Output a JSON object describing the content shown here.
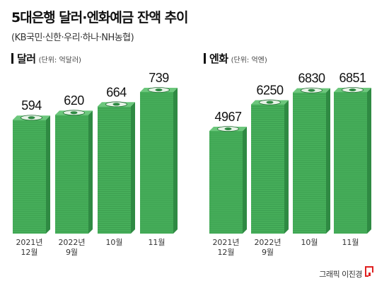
{
  "header": {
    "title": "5대은행 달러·엔화예금 잔액 추이",
    "subtitle": "(KB국민·신한·우리·하나·NH농협)"
  },
  "chart_data": [
    {
      "type": "bar",
      "title": "달러",
      "unit": "(단위: 억달러)",
      "categories": [
        [
          "2021년",
          "12월"
        ],
        [
          "2022년",
          "9월"
        ],
        [
          "10월"
        ],
        [
          "11월"
        ]
      ],
      "values": [
        594,
        620,
        664,
        739
      ],
      "value_labels": [
        "594",
        "620",
        "664",
        "739"
      ],
      "ylim": [
        0,
        739
      ],
      "grid": false,
      "style": "stacked-banknotes",
      "color": "#3a9a4e"
    },
    {
      "type": "bar",
      "title": "엔화",
      "unit": "(단위: 억엔)",
      "categories": [
        [
          "2021년",
          "12월"
        ],
        [
          "2022년",
          "9월"
        ],
        [
          "10월"
        ],
        [
          "11월"
        ]
      ],
      "values": [
        4967,
        6250,
        6830,
        6851
      ],
      "value_labels": [
        "4967",
        "6250",
        "6830",
        "6851"
      ],
      "ylim": [
        0,
        6851
      ],
      "grid": false,
      "style": "stacked-banknotes",
      "color": "#3a9a4e"
    }
  ],
  "footer": {
    "credit": "그래픽 이진경"
  },
  "colors": {
    "note_front": "#46ae5a",
    "note_side": "#2f8a43",
    "note_top": "#6cc77c",
    "logo_red": "#e02020"
  }
}
